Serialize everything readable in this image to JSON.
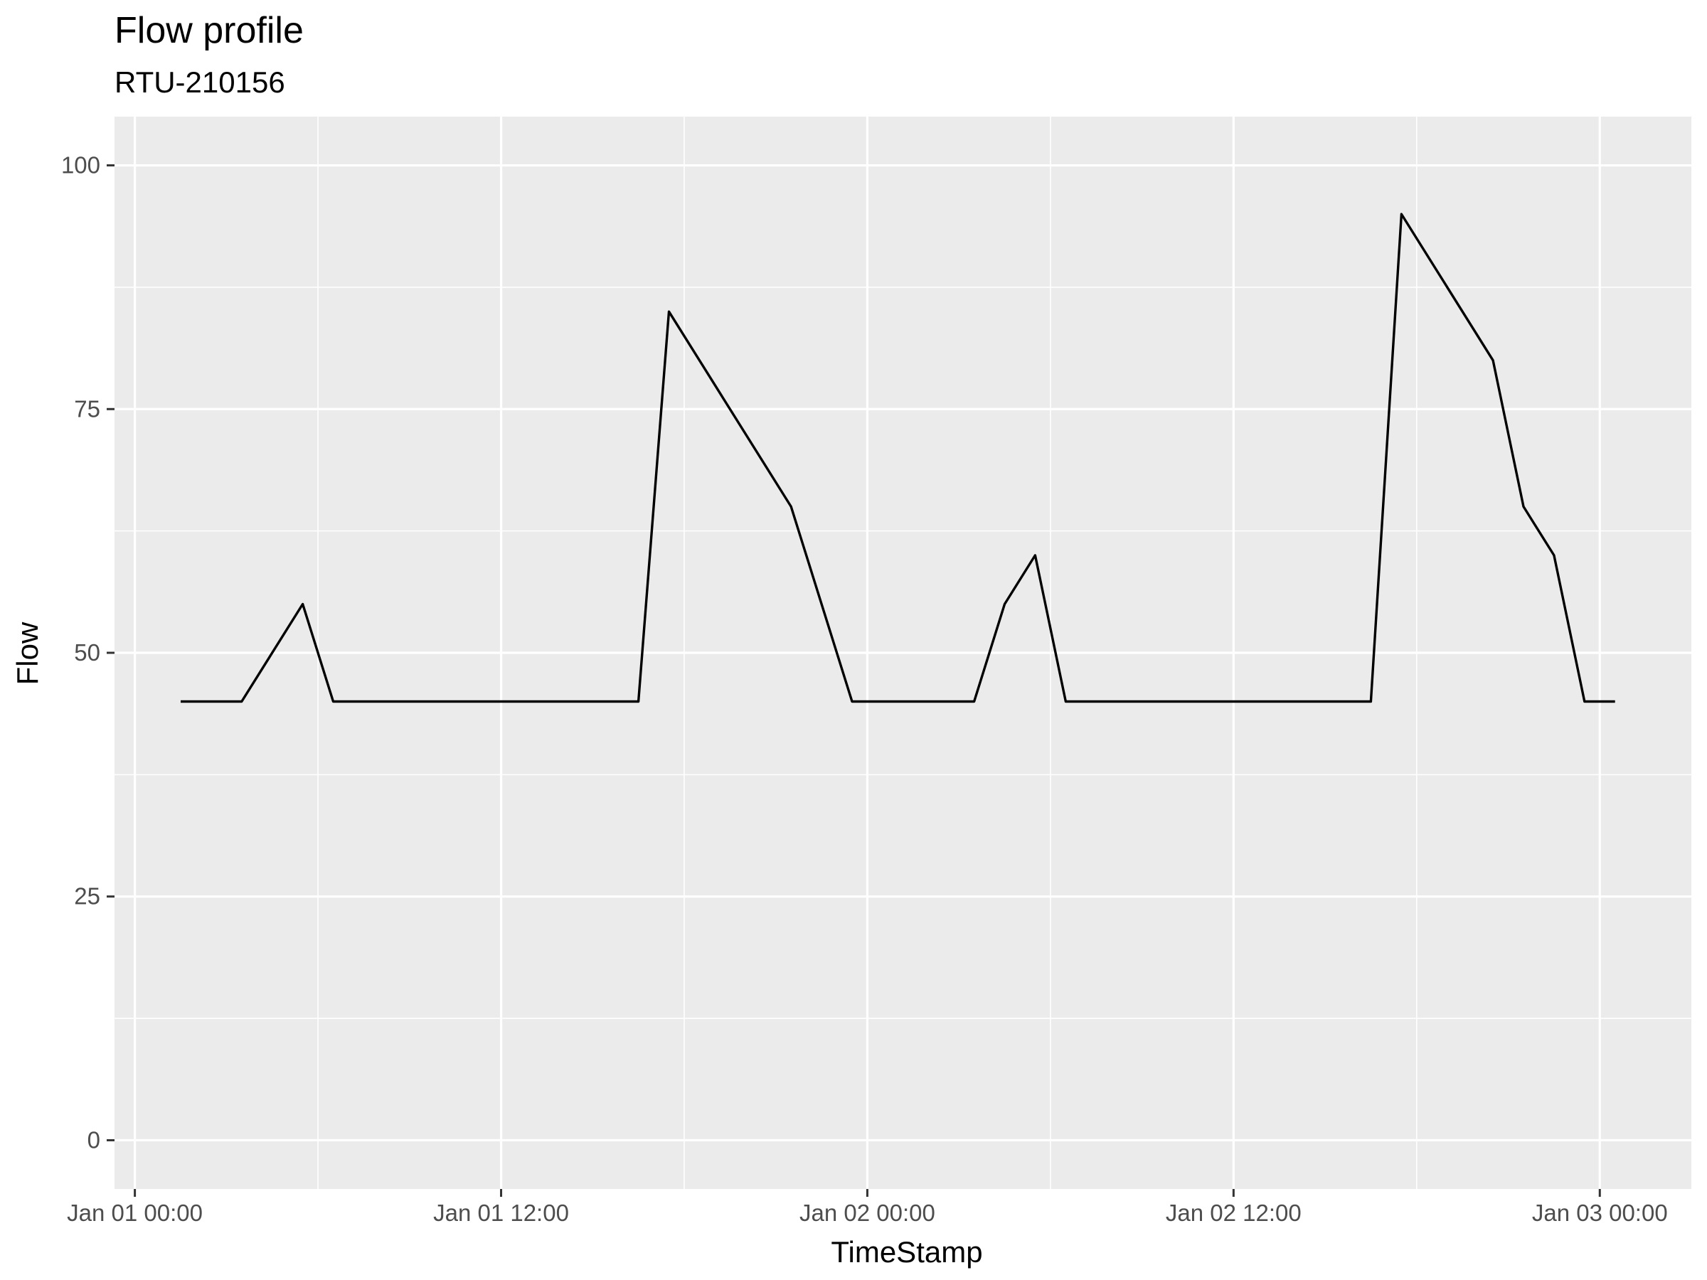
{
  "chart_data": {
    "type": "line",
    "title": "Flow profile",
    "subtitle": "RTU-210156",
    "xlabel": "TimeStamp",
    "ylabel": "Flow",
    "x_ticks": [
      "Jan 01 00:00",
      "Jan 01 12:00",
      "Jan 02 00:00",
      "Jan 02 12:00",
      "Jan 03 00:00"
    ],
    "y_ticks": [
      0,
      25,
      50,
      75,
      100
    ],
    "x_range": [
      "Dec 31 23:20",
      "Jan 03 03:00"
    ],
    "ylim": [
      -5,
      105
    ],
    "grid": true,
    "colors": {
      "panel": "#ebebeb",
      "grid": "#ffffff",
      "line": "#000000",
      "tick": "#333333"
    },
    "x": [
      "Jan 01 01:30",
      "Jan 01 03:30",
      "Jan 01 05:30",
      "Jan 01 06:30",
      "Jan 01 16:30",
      "Jan 01 17:30",
      "Jan 01 21:30",
      "Jan 01 23:30",
      "Jan 02 03:30",
      "Jan 02 04:30",
      "Jan 02 05:30",
      "Jan 02 06:30",
      "Jan 02 16:30",
      "Jan 02 17:30",
      "Jan 02 20:30",
      "Jan 02 21:30",
      "Jan 02 22:30",
      "Jan 02 23:30",
      "Jan 03 00:30"
    ],
    "series": [
      {
        "values": [
          45,
          45,
          55,
          45,
          45,
          85,
          65,
          45,
          45,
          55,
          60,
          45,
          45,
          95,
          80,
          65,
          60,
          45,
          45
        ]
      }
    ]
  }
}
